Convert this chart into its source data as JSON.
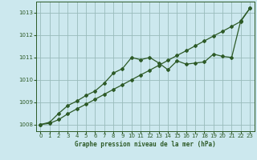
{
  "title": "Graphe pression niveau de la mer (hPa)",
  "bg_color": "#cce8ee",
  "line_color": "#2d5a27",
  "grid_color": "#99bbbb",
  "xlim": [
    -0.5,
    23.5
  ],
  "ylim": [
    1007.7,
    1013.5
  ],
  "xticks": [
    0,
    1,
    2,
    3,
    4,
    5,
    6,
    7,
    8,
    9,
    10,
    11,
    12,
    13,
    14,
    15,
    16,
    17,
    18,
    19,
    20,
    21,
    22,
    23
  ],
  "yticks": [
    1008,
    1009,
    1010,
    1011,
    1012,
    1013
  ],
  "series1_x": [
    0,
    1,
    2,
    3,
    4,
    5,
    6,
    7,
    8,
    9,
    10,
    11,
    12,
    13,
    14,
    15,
    16,
    17,
    18,
    19,
    20,
    21,
    22,
    23
  ],
  "series1_y": [
    1008.0,
    1008.1,
    1008.5,
    1008.85,
    1009.05,
    1009.3,
    1009.5,
    1009.85,
    1010.3,
    1010.5,
    1011.0,
    1010.9,
    1011.0,
    1010.75,
    1010.45,
    1010.85,
    1010.7,
    1010.75,
    1010.8,
    1011.15,
    1011.05,
    1011.0,
    1012.65,
    1013.2
  ],
  "series2_x": [
    0,
    1,
    2,
    3,
    4,
    5,
    6,
    7,
    8,
    9,
    10,
    11,
    12,
    13,
    14,
    15,
    16,
    17,
    18,
    19,
    20,
    21,
    22,
    23
  ],
  "series2_y": [
    1008.0,
    1008.05,
    1008.22,
    1008.48,
    1008.7,
    1008.91,
    1009.13,
    1009.35,
    1009.57,
    1009.78,
    1010.0,
    1010.22,
    1010.43,
    1010.65,
    1010.87,
    1011.09,
    1011.3,
    1011.52,
    1011.74,
    1011.96,
    1012.17,
    1012.39,
    1012.61,
    1013.2
  ]
}
